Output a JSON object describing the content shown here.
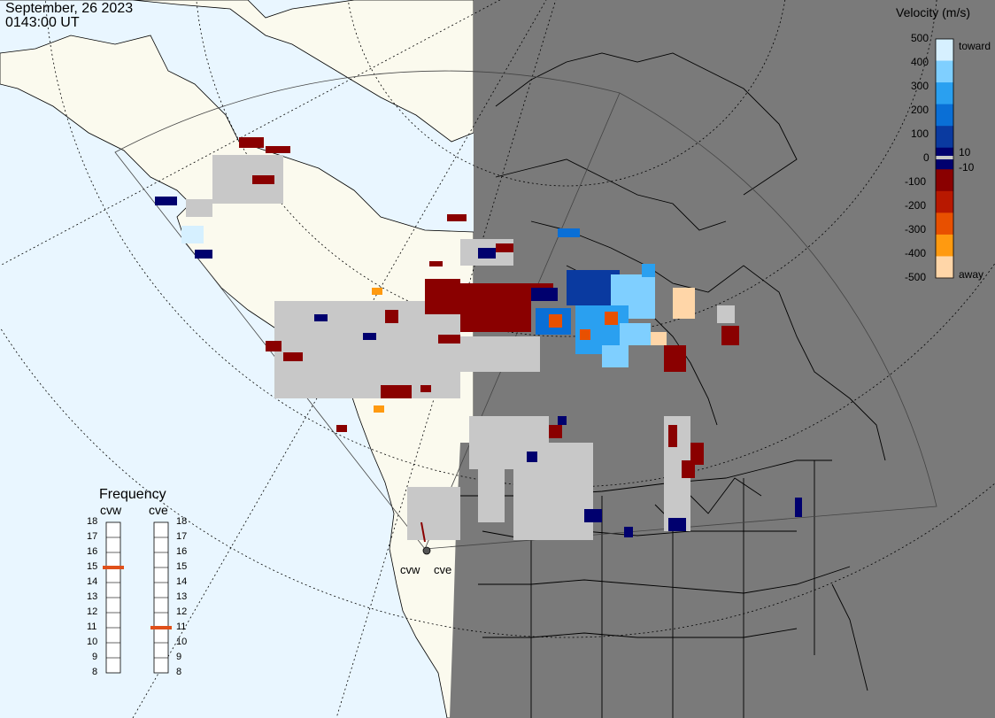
{
  "date": "September, 26 2023",
  "time": "0143:00 UT",
  "velocity_legend": {
    "title": "Velocity (m/s)",
    "ticks": [
      "500",
      "400",
      "300",
      "200",
      "100",
      "0",
      "-100",
      "-200",
      "-300",
      "-400",
      "-500"
    ],
    "extra_ticks": [
      "10",
      "-10"
    ],
    "toward_label": "toward",
    "away_label": "away",
    "colors": [
      "#d6f0ff",
      "#7fcfff",
      "#2aa0f0",
      "#0a6fd6",
      "#0a3aa0",
      "#00006e",
      "#8a0000",
      "#b81800",
      "#e85000",
      "#ff9a10",
      "#ffd6a8"
    ]
  },
  "frequency_legend": {
    "title": "Frequency",
    "radars": [
      {
        "name": "cvw",
        "frequency_mhz": 15
      },
      {
        "name": "cve",
        "frequency_mhz": 11
      }
    ],
    "scale": [
      "18",
      "17",
      "16",
      "15",
      "14",
      "13",
      "12",
      "11",
      "10",
      "9",
      "8"
    ],
    "marker_color": "#e0501a"
  },
  "radar_sites": [
    "cvw",
    "cve"
  ],
  "colors": {
    "ocean": "#e9f6ff",
    "land_day": "#fbfaee",
    "night": "#7a7a7a",
    "ground_scatter": "#c8c8c8"
  }
}
